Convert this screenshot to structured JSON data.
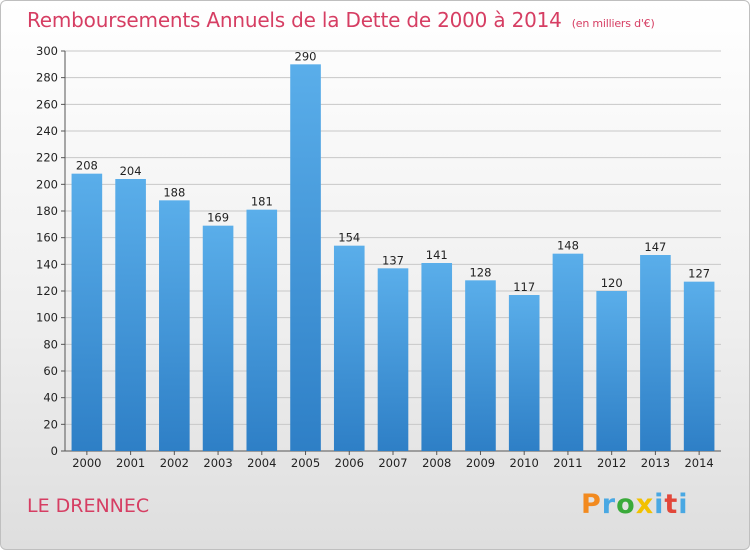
{
  "header": {
    "title": "Remboursements Annuels de la Dette de 2000 à 2014",
    "unit": "(en milliers d'€)"
  },
  "footer": {
    "commune": "LE DRENNEC",
    "brand": [
      "P",
      "r",
      "o",
      "x",
      "i",
      "t",
      "i"
    ]
  },
  "colors": {
    "title": "#d63e63",
    "bar_top": "#5aaeea",
    "bar_bottom": "#2e7fc6",
    "grid": "#c8c8c8"
  },
  "chart_data": {
    "type": "bar",
    "categories": [
      "2000",
      "2001",
      "2002",
      "2003",
      "2004",
      "2005",
      "2006",
      "2007",
      "2008",
      "2009",
      "2010",
      "2011",
      "2012",
      "2013",
      "2014"
    ],
    "values": [
      208,
      204,
      188,
      169,
      181,
      290,
      154,
      137,
      141,
      128,
      117,
      148,
      120,
      147,
      127
    ],
    "ylim": [
      0,
      300
    ],
    "yticks": [
      0,
      20,
      40,
      60,
      80,
      100,
      120,
      140,
      160,
      180,
      200,
      220,
      240,
      260,
      280,
      300
    ],
    "grid": true,
    "title": "Remboursements Annuels de la Dette de 2000 à 2014",
    "xlabel": "",
    "ylabel": ""
  }
}
